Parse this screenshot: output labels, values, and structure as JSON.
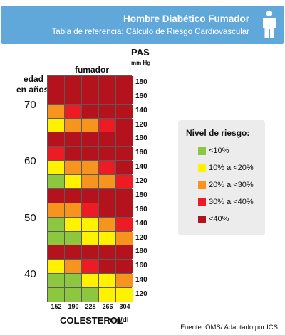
{
  "header": {
    "title": "Hombre Diabético Fumador",
    "subtitle": "Tabla de referencia: Cálculo de Riesgo Cardiovascular",
    "icon": "person-icon"
  },
  "labels": {
    "pas": "PAS",
    "mmhg": "mm Hg",
    "fumador": "fumador",
    "edad": "edad",
    "en_anos": "en años",
    "colesterol": "COLESTEROL",
    "mgdl": "mg/dl"
  },
  "legend": {
    "title": "Nivel de riesgo:",
    "items": [
      {
        "label": "<10%",
        "color": "#8dc63f"
      },
      {
        "label": "10% a <20%",
        "color": "#fff200"
      },
      {
        "label": "20% a <30%",
        "color": "#f7941d"
      },
      {
        "label": "30% a <40%",
        "color": "#ed1c24"
      },
      {
        "label": "<40%",
        "color": "#b4121c"
      }
    ]
  },
  "source": "Fuente:  OMS/ Adaptado por ICS",
  "chart_data": {
    "type": "heatmap",
    "title": "Hombre Diabético Fumador",
    "xlabel": "COLESTEROL mg/dl",
    "ylabel": "PAS mm Hg",
    "x": [
      "152",
      "190",
      "228",
      "266",
      "304"
    ],
    "y": [
      "180",
      "160",
      "140",
      "120"
    ],
    "value_key": [
      "<10%",
      "10% a <20%",
      "20% a <30%",
      "30% a <40%",
      "<40%"
    ],
    "panels": [
      {
        "age": "70",
        "rows": [
          [
            4,
            4,
            4,
            4,
            4
          ],
          [
            4,
            4,
            4,
            4,
            4
          ],
          [
            2,
            3,
            4,
            4,
            4
          ],
          [
            1,
            2,
            2,
            3,
            4
          ]
        ]
      },
      {
        "age": "60",
        "rows": [
          [
            4,
            4,
            4,
            4,
            4
          ],
          [
            3,
            4,
            4,
            4,
            4
          ],
          [
            1,
            2,
            2,
            3,
            4
          ],
          [
            0,
            1,
            2,
            2,
            3
          ]
        ]
      },
      {
        "age": "50",
        "rows": [
          [
            4,
            4,
            4,
            4,
            4
          ],
          [
            2,
            2,
            3,
            4,
            4
          ],
          [
            0,
            1,
            1,
            2,
            3
          ],
          [
            0,
            0,
            1,
            1,
            2
          ]
        ]
      },
      {
        "age": "40",
        "rows": [
          [
            4,
            4,
            4,
            4,
            4
          ],
          [
            1,
            2,
            3,
            4,
            4
          ],
          [
            0,
            0,
            1,
            1,
            2
          ],
          [
            0,
            0,
            0,
            1,
            1
          ]
        ]
      }
    ]
  }
}
